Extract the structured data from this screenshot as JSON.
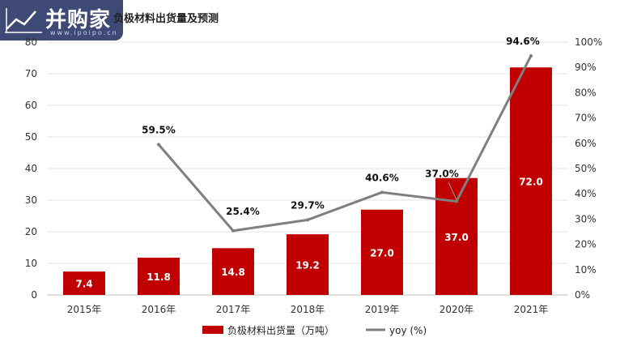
{
  "watermark": {
    "brand": "并购家",
    "url": "www.ipoipo.cn",
    "logo_icon": "chart-line-icon"
  },
  "chart_data": {
    "type": "bar",
    "title": "负极材料出货量及预测",
    "categories": [
      "2015年",
      "2016年",
      "2017年",
      "2018年",
      "2019年",
      "2020年",
      "2021年"
    ],
    "series": [
      {
        "name": "负极材料出货量（万吨）",
        "type": "bar",
        "axis": "left",
        "color": "#c00000",
        "values": [
          7.4,
          11.8,
          14.8,
          19.2,
          27.0,
          37.0,
          72.0
        ],
        "labels": [
          "7.4",
          "11.8",
          "14.8",
          "19.2",
          "27.0",
          "37.0",
          "72.0"
        ]
      },
      {
        "name": "yoy (%)",
        "type": "line",
        "axis": "right",
        "color": "#7f7f7f",
        "values": [
          null,
          59.5,
          25.4,
          29.7,
          40.6,
          37.0,
          94.6
        ],
        "labels": [
          "",
          "59.5%",
          "25.4%",
          "29.7%",
          "40.6%",
          "37.0%",
          "94.6%"
        ]
      }
    ],
    "y_left": {
      "min": 0,
      "max": 80,
      "ticks": [
        "0",
        "10",
        "20",
        "30",
        "40",
        "50",
        "60",
        "70",
        "80"
      ]
    },
    "y_right": {
      "min": 0,
      "max": 100,
      "ticks": [
        "0%",
        "10%",
        "20%",
        "30%",
        "40%",
        "50%",
        "60%",
        "70%",
        "80%",
        "90%",
        "100%"
      ]
    },
    "grid": true,
    "legend": "bottom-center"
  }
}
